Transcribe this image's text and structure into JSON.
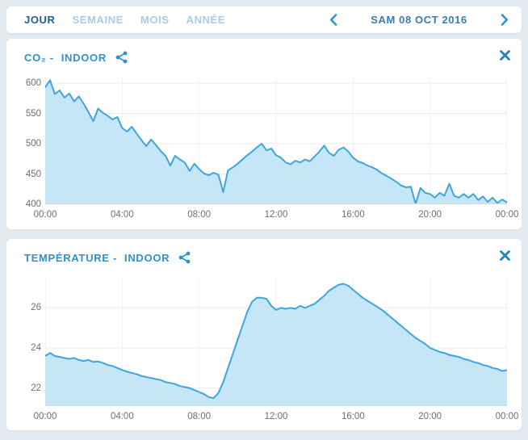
{
  "colors": {
    "page_bg": "#e3eaf1",
    "card_bg": "#ffffff",
    "accent_line": "#3fa5dc",
    "area_fill": "#c5e6f7",
    "title_blue": "#2d93cc",
    "icon_blue": "#1d83b8",
    "chevron_blue": "#2796d3",
    "tab_active": "#275d8c",
    "tab_inactive": "#a9cce6",
    "date_text": "#3a7cb0",
    "axis_text": "#6f6f6f",
    "grid_h": "#e9ebed",
    "grid_v": "#f1f2f4",
    "axis_line": "#d7dadd"
  },
  "topbar": {
    "tabs": [
      {
        "label": "JOUR",
        "active": true
      },
      {
        "label": "SEMAINE",
        "active": false
      },
      {
        "label": "MOIS",
        "active": false
      },
      {
        "label": "ANNÉE",
        "active": false
      }
    ],
    "date": "SAM 08 OCT 2016",
    "prev_icon": "chevron-left-icon",
    "next_icon": "chevron-right-icon"
  },
  "cards": [
    {
      "title": "CO₂ -",
      "module": "INDOOR",
      "share_icon": "share-icon",
      "close_icon": "close-icon"
    },
    {
      "title": "TEMPÉRATURE -",
      "module": "INDOOR",
      "share_icon": "share-icon",
      "close_icon": "close-icon"
    }
  ],
  "chart_data": [
    {
      "type": "area",
      "title": "CO₂ - INDOOR",
      "xlim": [
        0,
        24
      ],
      "ylim": [
        400,
        612
      ],
      "x_step_hours": 0.25,
      "yticks": [
        400,
        450,
        500,
        550,
        600
      ],
      "xticks": [
        {
          "pos": 0,
          "label": "00:00"
        },
        {
          "pos": 4,
          "label": "04:00"
        },
        {
          "pos": 8,
          "label": "08:00"
        },
        {
          "pos": 12,
          "label": "12:00"
        },
        {
          "pos": 16,
          "label": "16:00"
        },
        {
          "pos": 20,
          "label": "20:00"
        },
        {
          "pos": 24,
          "label": "00:00"
        }
      ],
      "values": [
        593,
        605,
        582,
        588,
        576,
        583,
        570,
        578,
        566,
        552,
        537,
        558,
        551,
        546,
        540,
        544,
        526,
        520,
        528,
        517,
        506,
        496,
        507,
        498,
        488,
        480,
        464,
        480,
        474,
        469,
        455,
        467,
        458,
        451,
        448,
        452,
        449,
        420,
        456,
        461,
        467,
        474,
        481,
        487,
        494,
        500,
        489,
        492,
        481,
        477,
        469,
        466,
        472,
        469,
        474,
        471,
        479,
        487,
        497,
        485,
        480,
        490,
        494,
        487,
        477,
        471,
        468,
        464,
        461,
        457,
        451,
        447,
        442,
        437,
        431,
        428,
        429,
        401,
        427,
        419,
        417,
        411,
        419,
        414,
        434,
        414,
        411,
        417,
        411,
        417,
        407,
        413,
        404,
        411,
        402,
        408,
        403
      ]
    },
    {
      "type": "area",
      "title": "TEMPÉRATURE - INDOOR",
      "xlim": [
        0,
        24
      ],
      "ylim": [
        21.1,
        27.5
      ],
      "x_step_hours": 0.25,
      "yticks": [
        22,
        24,
        26
      ],
      "xticks": [
        {
          "pos": 0,
          "label": "00:00"
        },
        {
          "pos": 4,
          "label": "04:00"
        },
        {
          "pos": 8,
          "label": "08:00"
        },
        {
          "pos": 12,
          "label": "12:00"
        },
        {
          "pos": 16,
          "label": "16:00"
        },
        {
          "pos": 20,
          "label": "20:00"
        },
        {
          "pos": 24,
          "label": "00:00"
        }
      ],
      "values": [
        23.6,
        23.75,
        23.6,
        23.55,
        23.5,
        23.45,
        23.5,
        23.4,
        23.35,
        23.4,
        23.3,
        23.32,
        23.25,
        23.15,
        23.1,
        23.0,
        22.9,
        22.82,
        22.75,
        22.7,
        22.6,
        22.55,
        22.5,
        22.45,
        22.4,
        22.3,
        22.25,
        22.2,
        22.1,
        22.05,
        22.0,
        21.9,
        21.8,
        21.7,
        21.55,
        21.5,
        21.75,
        22.3,
        23.0,
        23.7,
        24.4,
        25.1,
        25.8,
        26.3,
        26.5,
        26.5,
        26.45,
        26.1,
        25.9,
        26.0,
        25.95,
        26.0,
        25.95,
        26.1,
        26.0,
        26.1,
        26.2,
        26.4,
        26.6,
        26.85,
        27.0,
        27.15,
        27.2,
        27.1,
        26.9,
        26.7,
        26.5,
        26.35,
        26.2,
        26.05,
        25.9,
        25.7,
        25.5,
        25.3,
        25.1,
        24.9,
        24.7,
        24.5,
        24.35,
        24.2,
        24.0,
        23.9,
        23.8,
        23.75,
        23.65,
        23.6,
        23.55,
        23.45,
        23.4,
        23.3,
        23.25,
        23.15,
        23.1,
        23.0,
        22.95,
        22.85,
        22.9
      ]
    }
  ]
}
